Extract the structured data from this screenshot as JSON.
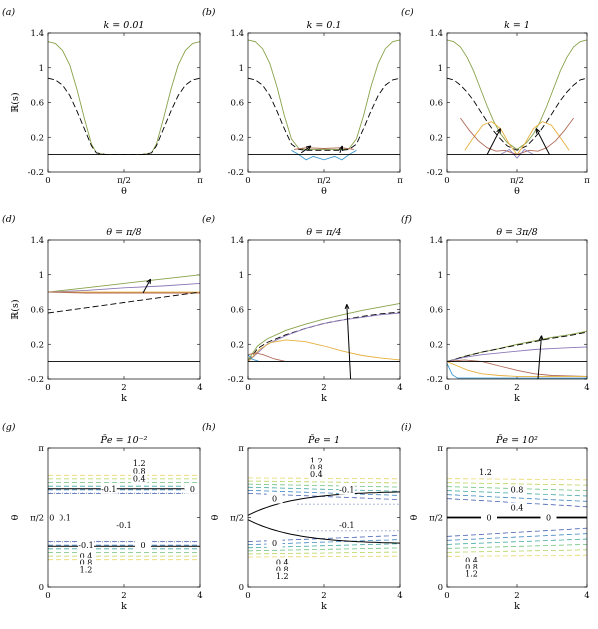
{
  "colors": {
    "green": "#88a24a",
    "purple": "#8b78b8",
    "brown": "#b06a57",
    "orange": "#e7b040",
    "blue": "#3f9bcf",
    "black": "#000000"
  },
  "chart_data": [
    {
      "id": "a",
      "panel_label": "(a)",
      "title": "k = 0.01",
      "type": "line",
      "xlabel": "θ",
      "ylabel": "ℝ(s)",
      "xticks": [
        "0",
        "π/2",
        "π"
      ],
      "yticks": [
        "-0.2",
        "0.2",
        "0.6",
        "1",
        "1.4"
      ],
      "xlim": [
        0,
        3.1416
      ],
      "ylim": [
        -0.2,
        1.4
      ],
      "series": [
        {
          "color": "green",
          "style": "solid",
          "x": [
            0,
            0.15,
            0.3,
            0.45,
            0.6,
            0.75,
            0.9,
            1.0,
            1.2,
            1.57,
            1.94,
            2.14,
            2.24,
            2.39,
            2.54,
            2.69,
            2.84,
            2.99,
            3.14
          ],
          "y": [
            1.3,
            1.28,
            1.2,
            1.03,
            0.75,
            0.42,
            0.12,
            0.02,
            0.0,
            0.0,
            0.0,
            0.02,
            0.12,
            0.42,
            0.75,
            1.03,
            1.2,
            1.28,
            1.3
          ]
        },
        {
          "color": "black",
          "style": "dashed",
          "x": [
            0,
            0.15,
            0.3,
            0.45,
            0.6,
            0.75,
            0.9,
            1.0,
            1.2,
            1.57,
            1.94,
            2.14,
            2.24,
            2.39,
            2.54,
            2.69,
            2.84,
            2.99,
            3.14
          ],
          "y": [
            0.88,
            0.86,
            0.8,
            0.68,
            0.5,
            0.3,
            0.1,
            0.02,
            0.0,
            0.0,
            0.0,
            0.02,
            0.1,
            0.3,
            0.5,
            0.68,
            0.8,
            0.86,
            0.88
          ]
        },
        {
          "color": "black",
          "style": "solid",
          "x": [
            0,
            3.1416
          ],
          "y": [
            0,
            0
          ]
        }
      ]
    },
    {
      "id": "b",
      "panel_label": "(b)",
      "title": "k = 0.1",
      "type": "line",
      "xlabel": "θ",
      "ylabel": "",
      "xticks": [
        "0",
        "π/2",
        "π"
      ],
      "yticks": [
        "-0.2",
        "0.2",
        "0.6",
        "1",
        "1.4"
      ],
      "xlim": [
        0,
        3.1416
      ],
      "ylim": [
        -0.2,
        1.4
      ],
      "series": [
        {
          "color": "green",
          "style": "solid",
          "x": [
            0,
            0.15,
            0.3,
            0.45,
            0.6,
            0.75,
            0.9,
            1.05,
            1.2,
            1.57,
            1.94,
            2.09,
            2.24,
            2.39,
            2.54,
            2.69,
            2.84,
            2.99,
            3.14
          ],
          "y": [
            1.32,
            1.3,
            1.22,
            1.05,
            0.78,
            0.45,
            0.18,
            0.07,
            0.06,
            0.06,
            0.06,
            0.07,
            0.18,
            0.45,
            0.78,
            1.05,
            1.22,
            1.3,
            1.32
          ]
        },
        {
          "color": "black",
          "style": "dashed",
          "x": [
            0,
            0.15,
            0.3,
            0.45,
            0.6,
            0.75,
            0.9,
            1.05,
            1.2,
            1.57,
            1.94,
            2.09,
            2.24,
            2.39,
            2.54,
            2.69,
            2.84,
            2.99,
            3.14
          ],
          "y": [
            0.88,
            0.86,
            0.8,
            0.68,
            0.5,
            0.3,
            0.12,
            0.06,
            0.05,
            0.05,
            0.05,
            0.06,
            0.12,
            0.3,
            0.5,
            0.68,
            0.8,
            0.86,
            0.88
          ]
        },
        {
          "color": "blue",
          "style": "solid",
          "x": [
            0.9,
            1.05,
            1.2,
            1.35,
            1.57,
            1.79,
            1.94,
            2.09,
            2.24
          ],
          "y": [
            0.05,
            0.0,
            -0.06,
            -0.02,
            -0.06,
            -0.02,
            -0.06,
            0.0,
            0.05
          ]
        },
        {
          "color": "brown",
          "style": "solid",
          "x": [
            0.95,
            1.2,
            1.57,
            1.94,
            2.19
          ],
          "y": [
            0.06,
            0.08,
            0.07,
            0.08,
            0.06
          ]
        },
        {
          "color": "black",
          "style": "solid",
          "x": [
            0,
            3.1416
          ],
          "y": [
            0,
            0
          ]
        }
      ]
    },
    {
      "id": "c",
      "panel_label": "(c)",
      "title": "k = 1",
      "type": "line",
      "xlabel": "θ",
      "ylabel": "",
      "xticks": [
        "0",
        "π/2",
        "π"
      ],
      "yticks": [
        "-0.2",
        "0.2",
        "0.6",
        "1",
        "1.4"
      ],
      "xlim": [
        0,
        3.1416
      ],
      "ylim": [
        -0.2,
        1.4
      ],
      "series": [
        {
          "color": "green",
          "style": "solid",
          "x": [
            0,
            0.15,
            0.3,
            0.45,
            0.6,
            0.75,
            0.9,
            1.05,
            1.2,
            1.35,
            1.57,
            1.79,
            1.94,
            2.09,
            2.24,
            2.39,
            2.54,
            2.69,
            2.84,
            2.99,
            3.14
          ],
          "y": [
            1.32,
            1.3,
            1.24,
            1.12,
            0.96,
            0.76,
            0.56,
            0.38,
            0.24,
            0.14,
            0.06,
            0.14,
            0.24,
            0.38,
            0.56,
            0.76,
            0.96,
            1.12,
            1.24,
            1.3,
            1.32
          ]
        },
        {
          "color": "black",
          "style": "dashed",
          "x": [
            0,
            0.15,
            0.3,
            0.45,
            0.6,
            0.75,
            0.9,
            1.05,
            1.2,
            1.35,
            1.57,
            1.79,
            1.94,
            2.09,
            2.24,
            2.39,
            2.54,
            2.69,
            2.84,
            2.99,
            3.14
          ],
          "y": [
            0.88,
            0.86,
            0.8,
            0.72,
            0.62,
            0.5,
            0.38,
            0.27,
            0.18,
            0.1,
            0.05,
            0.1,
            0.18,
            0.27,
            0.38,
            0.5,
            0.62,
            0.72,
            0.8,
            0.86,
            0.88
          ]
        },
        {
          "color": "orange",
          "style": "solid",
          "x": [
            0.4,
            0.6,
            0.8,
            1.0,
            1.2,
            1.4,
            1.57,
            1.74,
            1.94,
            2.14,
            2.34,
            2.54,
            2.74
          ],
          "y": [
            0.05,
            0.2,
            0.34,
            0.38,
            0.3,
            0.12,
            0.0,
            0.12,
            0.3,
            0.38,
            0.34,
            0.2,
            0.05
          ]
        },
        {
          "color": "brown",
          "style": "solid",
          "x": [
            0.3,
            0.5,
            0.7,
            0.9,
            1.1,
            1.3,
            1.57,
            1.84,
            2.04,
            2.24,
            2.44,
            2.64,
            2.84
          ],
          "y": [
            0.42,
            0.28,
            0.16,
            0.08,
            0.04,
            0.05,
            0.0,
            0.05,
            0.04,
            0.08,
            0.16,
            0.28,
            0.42
          ]
        },
        {
          "color": "purple",
          "style": "solid",
          "x": [
            1.0,
            1.2,
            1.4,
            1.57,
            1.74,
            1.94,
            2.14
          ],
          "y": [
            0.0,
            0.0,
            0.06,
            -0.04,
            0.06,
            0.0,
            0.0
          ]
        },
        {
          "color": "black",
          "style": "solid",
          "x": [
            0,
            3.1416
          ],
          "y": [
            0,
            0
          ]
        }
      ]
    },
    {
      "id": "d",
      "panel_label": "(d)",
      "title": "θ = π/8",
      "type": "line",
      "xlabel": "k",
      "ylabel": "ℝ(s)",
      "xticks": [
        "0",
        "2",
        "4"
      ],
      "yticks": [
        "-0.2",
        "0.2",
        "0.6",
        "1",
        "1.4"
      ],
      "xlim": [
        0,
        4
      ],
      "ylim": [
        -0.2,
        1.4
      ],
      "series": [
        {
          "color": "green",
          "style": "solid",
          "x": [
            0,
            1,
            2,
            3,
            4
          ],
          "y": [
            0.8,
            0.85,
            0.9,
            0.95,
            1.0
          ]
        },
        {
          "color": "purple",
          "style": "solid",
          "x": [
            0,
            1,
            2,
            3,
            4
          ],
          "y": [
            0.8,
            0.82,
            0.85,
            0.87,
            0.9
          ]
        },
        {
          "color": "orange",
          "style": "solid",
          "x": [
            0,
            1,
            2,
            3,
            4
          ],
          "y": [
            0.8,
            0.8,
            0.8,
            0.8,
            0.8
          ]
        },
        {
          "color": "brown",
          "style": "solid",
          "x": [
            0,
            1,
            2,
            3,
            4
          ],
          "y": [
            0.8,
            0.79,
            0.79,
            0.79,
            0.79
          ]
        },
        {
          "color": "black",
          "style": "dashed",
          "x": [
            0,
            1,
            2,
            3,
            4
          ],
          "y": [
            0.56,
            0.62,
            0.68,
            0.74,
            0.8
          ]
        },
        {
          "color": "black",
          "style": "solid",
          "x": [
            0,
            4
          ],
          "y": [
            0,
            0
          ]
        }
      ]
    },
    {
      "id": "e",
      "panel_label": "(e)",
      "title": "θ = π/4",
      "type": "line",
      "xlabel": "k",
      "ylabel": "",
      "xticks": [
        "0",
        "2",
        "4"
      ],
      "yticks": [
        "-0.2",
        "0.2",
        "0.6",
        "1",
        "1.4"
      ],
      "xlim": [
        0,
        4
      ],
      "ylim": [
        -0.2,
        1.4
      ],
      "series": [
        {
          "color": "green",
          "style": "solid",
          "x": [
            0,
            0.25,
            0.5,
            1,
            1.5,
            2,
            2.5,
            3,
            3.5,
            4
          ],
          "y": [
            0.02,
            0.18,
            0.26,
            0.36,
            0.43,
            0.49,
            0.54,
            0.59,
            0.63,
            0.67
          ]
        },
        {
          "color": "black",
          "style": "dashed",
          "x": [
            0,
            0.25,
            0.5,
            1,
            1.5,
            2,
            2.5,
            3,
            3.5,
            4
          ],
          "y": [
            0.0,
            0.15,
            0.22,
            0.31,
            0.38,
            0.44,
            0.48,
            0.52,
            0.55,
            0.57
          ]
        },
        {
          "color": "purple",
          "style": "solid",
          "x": [
            0,
            0.5,
            1,
            1.5,
            2,
            2.5,
            3,
            3.5,
            4
          ],
          "y": [
            0.0,
            0.2,
            0.3,
            0.38,
            0.44,
            0.48,
            0.51,
            0.54,
            0.56
          ]
        },
        {
          "color": "orange",
          "style": "solid",
          "x": [
            0,
            0.3,
            0.6,
            1,
            1.5,
            2,
            2.5,
            3,
            3.5,
            4
          ],
          "y": [
            0.0,
            0.14,
            0.22,
            0.25,
            0.23,
            0.18,
            0.12,
            0.07,
            0.04,
            0.02
          ]
        },
        {
          "color": "brown",
          "style": "solid",
          "x": [
            0,
            0.2,
            0.4,
            0.7,
            1,
            1.5,
            4
          ],
          "y": [
            0.08,
            0.1,
            0.08,
            0.03,
            0.0,
            0.0,
            0.0
          ]
        },
        {
          "color": "blue",
          "style": "solid",
          "x": [
            0,
            0.1,
            0.3,
            4
          ],
          "y": [
            0.08,
            0.03,
            0.0,
            0.0
          ]
        },
        {
          "color": "black",
          "style": "solid",
          "x": [
            0,
            4
          ],
          "y": [
            0,
            0
          ]
        }
      ]
    },
    {
      "id": "f",
      "panel_label": "(f)",
      "title": "θ = 3π/8",
      "type": "line",
      "xlabel": "k",
      "ylabel": "",
      "xticks": [
        "0",
        "2",
        "4"
      ],
      "yticks": [
        "-0.2",
        "0.2",
        "0.6",
        "1",
        "1.4"
      ],
      "xlim": [
        0,
        4
      ],
      "ylim": [
        -0.2,
        1.4
      ],
      "series": [
        {
          "color": "green",
          "style": "solid",
          "x": [
            0,
            0.5,
            1,
            1.5,
            2,
            2.5,
            3,
            3.5,
            4
          ],
          "y": [
            0.0,
            0.06,
            0.11,
            0.15,
            0.2,
            0.24,
            0.28,
            0.31,
            0.35
          ]
        },
        {
          "color": "black",
          "style": "dashed",
          "x": [
            0,
            0.5,
            1,
            1.5,
            2,
            2.5,
            3,
            3.5,
            4
          ],
          "y": [
            0.0,
            0.06,
            0.11,
            0.15,
            0.19,
            0.23,
            0.27,
            0.3,
            0.34
          ]
        },
        {
          "color": "purple",
          "style": "solid",
          "x": [
            0,
            0.5,
            1,
            1.5,
            2,
            2.5,
            3,
            3.5,
            4
          ],
          "y": [
            0.0,
            0.05,
            0.08,
            0.1,
            0.12,
            0.14,
            0.15,
            0.16,
            0.17
          ]
        },
        {
          "color": "brown",
          "style": "solid",
          "x": [
            0,
            0.5,
            1,
            1.5,
            2,
            2.5,
            3,
            4
          ],
          "y": [
            0.0,
            0.02,
            0.0,
            -0.05,
            -0.1,
            -0.14,
            -0.16,
            -0.17
          ]
        },
        {
          "color": "orange",
          "style": "solid",
          "x": [
            0,
            0.3,
            0.6,
            1,
            1.5,
            2,
            3,
            4
          ],
          "y": [
            0.0,
            -0.05,
            -0.1,
            -0.14,
            -0.16,
            -0.17,
            -0.17,
            -0.17
          ]
        },
        {
          "color": "blue",
          "style": "solid",
          "x": [
            0,
            0.15,
            0.3,
            4
          ],
          "y": [
            -0.02,
            -0.15,
            -0.19,
            -0.19
          ]
        },
        {
          "color": "black",
          "style": "solid",
          "x": [
            0,
            4
          ],
          "y": [
            0,
            0
          ]
        }
      ]
    },
    {
      "id": "g",
      "panel_label": "(g)",
      "title": "P̄e = 10⁻²",
      "type": "contour",
      "xlabel": "k",
      "ylabel": "θ",
      "xticks": [
        "0",
        "2",
        "4"
      ],
      "yticks": [
        "0",
        "π/2",
        "π"
      ],
      "xlim": [
        0,
        4
      ],
      "ylim": [
        0,
        3.1416
      ],
      "contour_labels": [
        "1.2",
        "0.8",
        "0.4",
        "-0.1",
        "0",
        "-0.1",
        "-0.1",
        "-0.1",
        "0",
        "0.4",
        "0.8",
        "1.2",
        "0"
      ]
    },
    {
      "id": "h",
      "panel_label": "(h)",
      "title": "P̄e = 1",
      "type": "contour",
      "xlabel": "k",
      "ylabel": "θ",
      "xticks": [
        "0",
        "2",
        "4"
      ],
      "yticks": [
        "0",
        "π/2",
        "π"
      ],
      "xlim": [
        0,
        4
      ],
      "ylim": [
        0,
        3.1416
      ],
      "contour_labels": [
        "1.2",
        "0.8",
        "0.4",
        "-0.1",
        "0",
        "0",
        "-0.1",
        "0.4",
        "0.8",
        "1.2"
      ]
    },
    {
      "id": "i",
      "panel_label": "(i)",
      "title": "P̄e = 10²",
      "type": "contour",
      "xlabel": "k",
      "ylabel": "θ",
      "xticks": [
        "0",
        "2",
        "4"
      ],
      "yticks": [
        "0",
        "π/2",
        "π"
      ],
      "xlim": [
        0,
        4
      ],
      "ylim": [
        0,
        3.1416
      ],
      "contour_labels": [
        "1.2",
        "0.8",
        "0.4",
        "0",
        "0",
        "0.4",
        "0.8",
        "1.2"
      ]
    }
  ]
}
